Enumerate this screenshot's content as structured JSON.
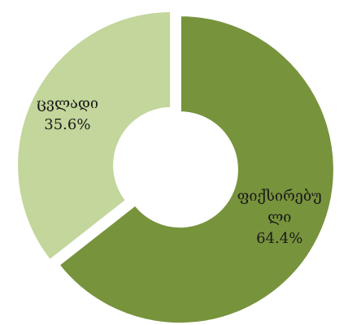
{
  "chart_data": {
    "type": "donut",
    "categories": [
      "ფიქსირებული",
      "ცვლადი"
    ],
    "values": [
      64.4,
      35.6
    ],
    "value_labels": [
      "64.4%",
      "35.6%"
    ],
    "colors": [
      "#77933c",
      "#c3d69b"
    ]
  }
}
